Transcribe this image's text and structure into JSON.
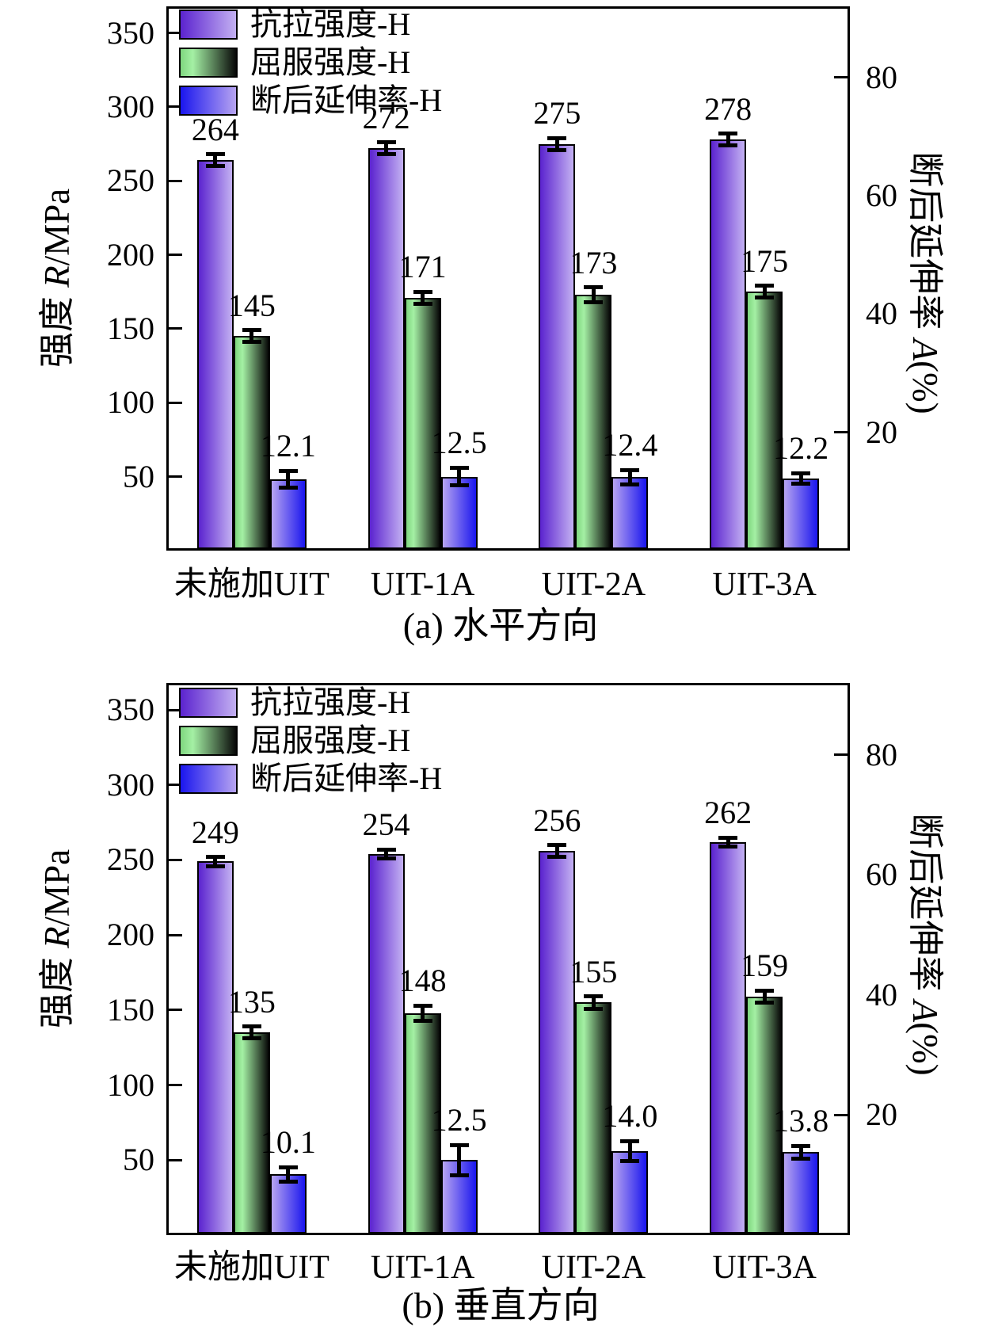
{
  "figure": {
    "description_colors": {
      "tensile_gradient_start": "#5b23cf",
      "tensile_gradient_end": "#c3b0f2",
      "yield_gradient_start": "#7fd67f",
      "yield_gradient_mid": "#a4f0a4",
      "yield_gradient_end": "#070707",
      "elongation_gradient_start": "#b7a4f1",
      "elongation_gradient_end": "#1a16ee",
      "axis_color": "#000000"
    }
  },
  "chart_data": [
    {
      "type": "bar",
      "caption": "(a) 水平方向",
      "categories": [
        "未施加UIT",
        "UIT-1A",
        "UIT-2A",
        "UIT-3A"
      ],
      "left_axis": {
        "title_prefix": "强度 ",
        "title_italic": "R",
        "title_suffix": "/MPa",
        "ticks": [
          50,
          100,
          150,
          200,
          250,
          300,
          350
        ],
        "range": [
          0,
          368
        ],
        "grid": false
      },
      "right_axis": {
        "title_prefix": "断后延伸率 ",
        "title_italic": "A",
        "title_suffix": "(%)",
        "labels": [
          20,
          40,
          60,
          80
        ],
        "tick_marks": [
          20,
          80
        ],
        "range": [
          0,
          92
        ]
      },
      "legend_position": "top-left-inside",
      "series": [
        {
          "name": "抗拉强度-H",
          "axis": "left",
          "values": [
            264,
            272,
            275,
            278
          ],
          "labels": [
            "264",
            "272",
            "275",
            "278"
          ],
          "errors": [
            4,
            4,
            4,
            4
          ],
          "bar_gradient": [
            "#5b23cf",
            "#c3b0f2"
          ],
          "legend_gradient": [
            "#5b23cf",
            "#c3b0f2"
          ]
        },
        {
          "name": "屈服强度-H",
          "axis": "left",
          "values": [
            145,
            171,
            173,
            175
          ],
          "labels": [
            "145",
            "171",
            "173",
            "175"
          ],
          "errors": [
            4,
            4,
            5,
            4
          ],
          "bar_gradient": [
            "#7fd67f",
            "#a4f0a4",
            "#070707"
          ],
          "legend_gradient": [
            "#7fd67f",
            "#a4f0a4",
            "#070707"
          ]
        },
        {
          "name": "断后延伸率-H",
          "axis": "right",
          "values": [
            12.1,
            12.5,
            12.4,
            12.2
          ],
          "labels": [
            "12.1",
            "12.5",
            "12.4",
            "12.2"
          ],
          "errors": [
            1.4,
            1.5,
            1.2,
            0.9
          ],
          "bar_gradient": [
            "#b7a4f1",
            "#1a16ee"
          ],
          "legend_gradient": [
            "#1a16ee",
            "#b7a4f1"
          ]
        }
      ]
    },
    {
      "type": "bar",
      "caption": "(b) 垂直方向",
      "categories": [
        "未施加UIT",
        "UIT-1A",
        "UIT-2A",
        "UIT-3A"
      ],
      "left_axis": {
        "title_prefix": "强度 ",
        "title_italic": "R",
        "title_suffix": "/MPa",
        "ticks": [
          50,
          100,
          150,
          200,
          250,
          300,
          350
        ],
        "range": [
          0,
          368
        ],
        "grid": false
      },
      "right_axis": {
        "title_prefix": "断后延伸率 ",
        "title_italic": "A",
        "title_suffix": "(%)",
        "labels": [
          20,
          40,
          60,
          80
        ],
        "tick_marks": [
          20,
          80
        ],
        "range": [
          0,
          92
        ]
      },
      "legend_position": "top-left-inside",
      "series": [
        {
          "name": "抗拉强度-H",
          "axis": "left",
          "values": [
            249,
            254,
            256,
            262
          ],
          "labels": [
            "249",
            "254",
            "256",
            "262"
          ],
          "errors": [
            3,
            3,
            4,
            3
          ],
          "bar_gradient": [
            "#5b23cf",
            "#c3b0f2"
          ],
          "legend_gradient": [
            "#5b23cf",
            "#c3b0f2"
          ]
        },
        {
          "name": "屈服强度-H",
          "axis": "left",
          "values": [
            135,
            148,
            155,
            159
          ],
          "labels": [
            "135",
            "148",
            "155",
            "159"
          ],
          "errors": [
            4,
            5,
            4,
            4
          ],
          "bar_gradient": [
            "#7fd67f",
            "#a4f0a4",
            "#070707"
          ],
          "legend_gradient": [
            "#7fd67f",
            "#a4f0a4",
            "#070707"
          ]
        },
        {
          "name": "断后延伸率-H",
          "axis": "right",
          "values": [
            10.1,
            12.5,
            14.0,
            13.8
          ],
          "labels": [
            "10.1",
            "12.5",
            "14.0",
            "13.8"
          ],
          "errors": [
            1.2,
            2.5,
            1.7,
            1.1
          ],
          "bar_gradient": [
            "#b7a4f1",
            "#1a16ee"
          ],
          "legend_gradient": [
            "#1a16ee",
            "#b7a4f1"
          ]
        }
      ]
    }
  ]
}
